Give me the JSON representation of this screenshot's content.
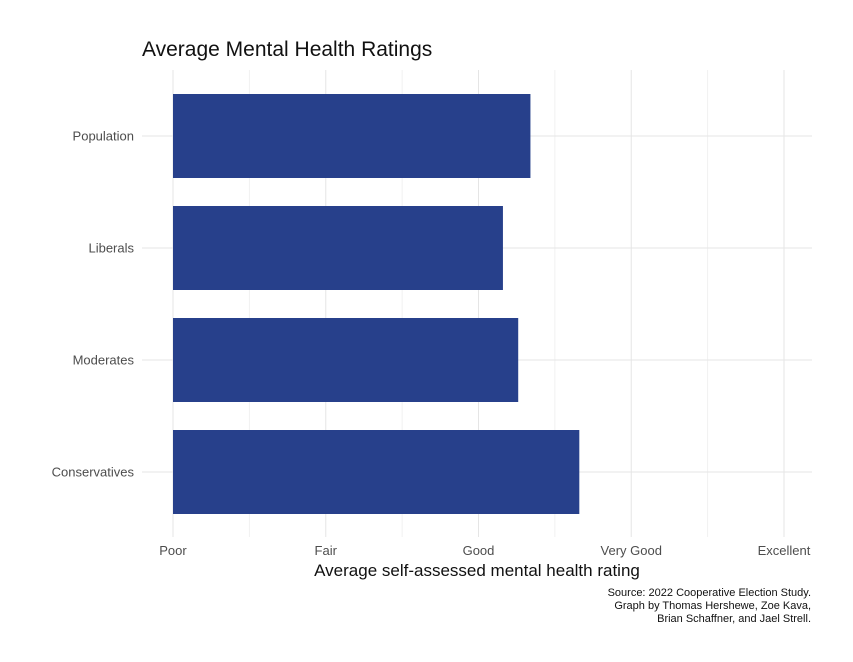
{
  "chart_data": {
    "type": "bar",
    "orientation": "horizontal",
    "title": "Average Mental Health Ratings",
    "xlabel": "Average self-assessed mental health rating",
    "ylabel": "",
    "categories": [
      "Population",
      "Liberals",
      "Moderates",
      "Conservatives"
    ],
    "values": [
      3.34,
      3.16,
      3.26,
      3.66
    ],
    "xlim": [
      1,
      5
    ],
    "x_ticks": [
      {
        "value": 1,
        "label": "Poor"
      },
      {
        "value": 2,
        "label": "Fair"
      },
      {
        "value": 3,
        "label": "Good"
      },
      {
        "value": 4,
        "label": "Very Good"
      },
      {
        "value": 5,
        "label": "Excellent"
      }
    ],
    "grid": true,
    "bar_color": "#27408b",
    "caption": [
      "Source: 2022 Cooperative Election Study.",
      "Graph by Thomas Hershewe, Zoe Kava,",
      "Brian Schaffner, and Jael Strell."
    ]
  }
}
